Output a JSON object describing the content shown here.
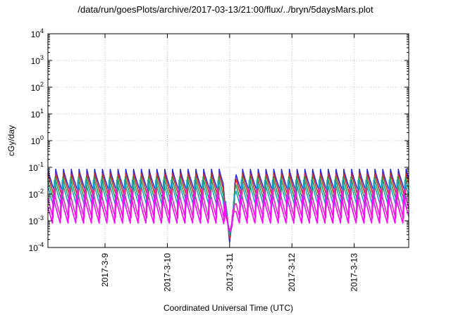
{
  "chart_data": {
    "type": "line",
    "title": "/data/run/goesPlots/archive/2017-03-13/21:00/flux/../bryn/5daysMars.plot",
    "xlabel": "Coordinated Universal Time (UTC)",
    "ylabel": "cGy/day",
    "yscale": "log",
    "ylim": [
      0.0001,
      10000
    ],
    "xlim": [
      "2017-03-08 02:00",
      "2017-03-13 21:00"
    ],
    "y_ticks": [
      {
        "base": "10",
        "exp": "-4",
        "value": 0.0001
      },
      {
        "base": "10",
        "exp": "-3",
        "value": 0.001
      },
      {
        "base": "10",
        "exp": "-2",
        "value": 0.01
      },
      {
        "base": "10",
        "exp": "-1",
        "value": 0.1
      },
      {
        "base": "10",
        "exp": "0",
        "value": 1
      },
      {
        "base": "10",
        "exp": "1",
        "value": 10
      },
      {
        "base": "10",
        "exp": "2",
        "value": 100
      },
      {
        "base": "10",
        "exp": "3",
        "value": 1000
      },
      {
        "base": "10",
        "exp": "4",
        "value": 10000
      }
    ],
    "x_ticks": [
      {
        "label": "2017-3-9",
        "value": "2017-03-09 00:00"
      },
      {
        "label": "2017-3-10",
        "value": "2017-03-10 00:00"
      },
      {
        "label": "2017-3-11",
        "value": "2017-03-11 00:00"
      },
      {
        "label": "2017-3-12",
        "value": "2017-03-12 00:00"
      },
      {
        "label": "2017-3-13",
        "value": "2017-03-13 00:00"
      }
    ],
    "grid": true,
    "legend": "none",
    "pattern": {
      "sawtooth_period_hours": 3,
      "dip_time": "2017-03-11 00:00",
      "dip_min_value": 0.00015
    },
    "series": [
      {
        "color": "#2b2bd6",
        "peak": 0.085,
        "trough": 0.0095
      },
      {
        "color": "#d42a2a",
        "peak": 0.075,
        "trough": 0.0065
      },
      {
        "color": "#2aa050",
        "peak": 0.055,
        "trough": 0.0045
      },
      {
        "color": "#1aa0c8",
        "peak": 0.04,
        "trough": 0.003
      },
      {
        "color": "#e61fd2",
        "peak": 0.018,
        "trough": 0.0011
      },
      {
        "color": "#ff00ff",
        "peak": 0.01,
        "trough": 0.0007
      }
    ]
  }
}
